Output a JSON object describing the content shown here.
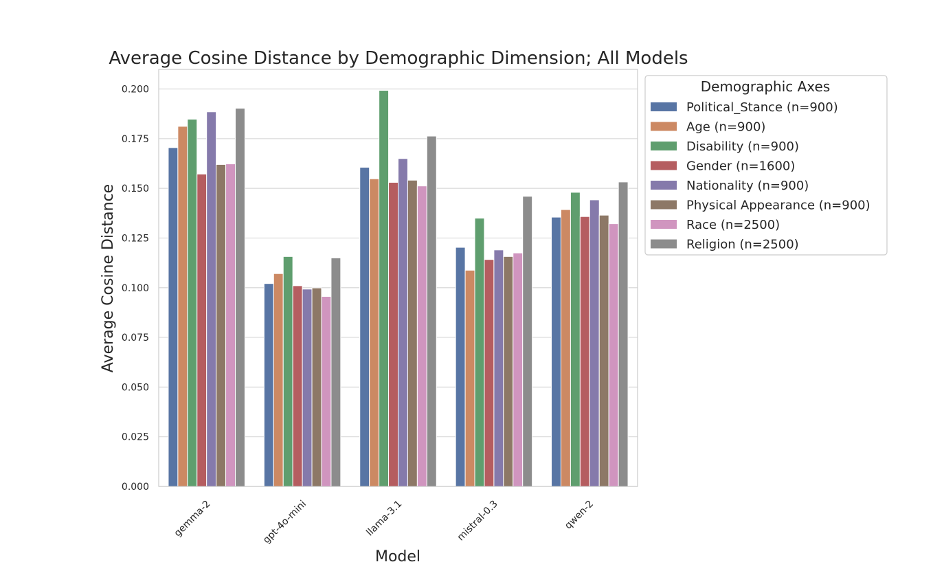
{
  "chart_data": {
    "type": "bar",
    "title": "Average Cosine Distance by Demographic Dimension; All Models",
    "xlabel": "Model",
    "ylabel": "Average Cosine Distance",
    "ylim": [
      0,
      0.2
    ],
    "yticks": [
      "0.000",
      "0.025",
      "0.050",
      "0.075",
      "0.100",
      "0.125",
      "0.150",
      "0.175",
      "0.200"
    ],
    "grid": true,
    "legend_title": "Demographic Axes",
    "legend_position": "outside-right",
    "categories": [
      "gemma-2",
      "gpt-4o-mini",
      "llama-3.1",
      "mistral-0.3",
      "qwen-2"
    ],
    "series": [
      {
        "name": "Political_Stance (n=900)",
        "color": "#5875a4",
        "values": [
          0.1705,
          0.1021,
          0.1606,
          0.1203,
          0.1355
        ]
      },
      {
        "name": "Age (n=900)",
        "color": "#cc8963",
        "values": [
          0.1812,
          0.1071,
          0.1548,
          0.1088,
          0.1393
        ]
      },
      {
        "name": "Disability (n=900)",
        "color": "#5f9e6e",
        "values": [
          0.1848,
          0.1157,
          0.1993,
          0.135,
          0.148
        ]
      },
      {
        "name": "Gender (n=1600)",
        "color": "#b55d60",
        "values": [
          0.1572,
          0.101,
          0.153,
          0.1142,
          0.1358
        ]
      },
      {
        "name": "Nationality (n=900)",
        "color": "#857aab",
        "values": [
          0.1885,
          0.0993,
          0.165,
          0.119,
          0.1442
        ]
      },
      {
        "name": "Physical Appearance (n=900)",
        "color": "#8d7866",
        "values": [
          0.162,
          0.0999,
          0.1541,
          0.1157,
          0.1365
        ]
      },
      {
        "name": "Race (n=2500)",
        "color": "#d095bf",
        "values": [
          0.1623,
          0.0956,
          0.1512,
          0.1175,
          0.1322
        ]
      },
      {
        "name": "Religion (n=2500)",
        "color": "#8c8c8c",
        "values": [
          0.1903,
          0.115,
          0.1763,
          0.146,
          0.1532
        ]
      }
    ]
  }
}
